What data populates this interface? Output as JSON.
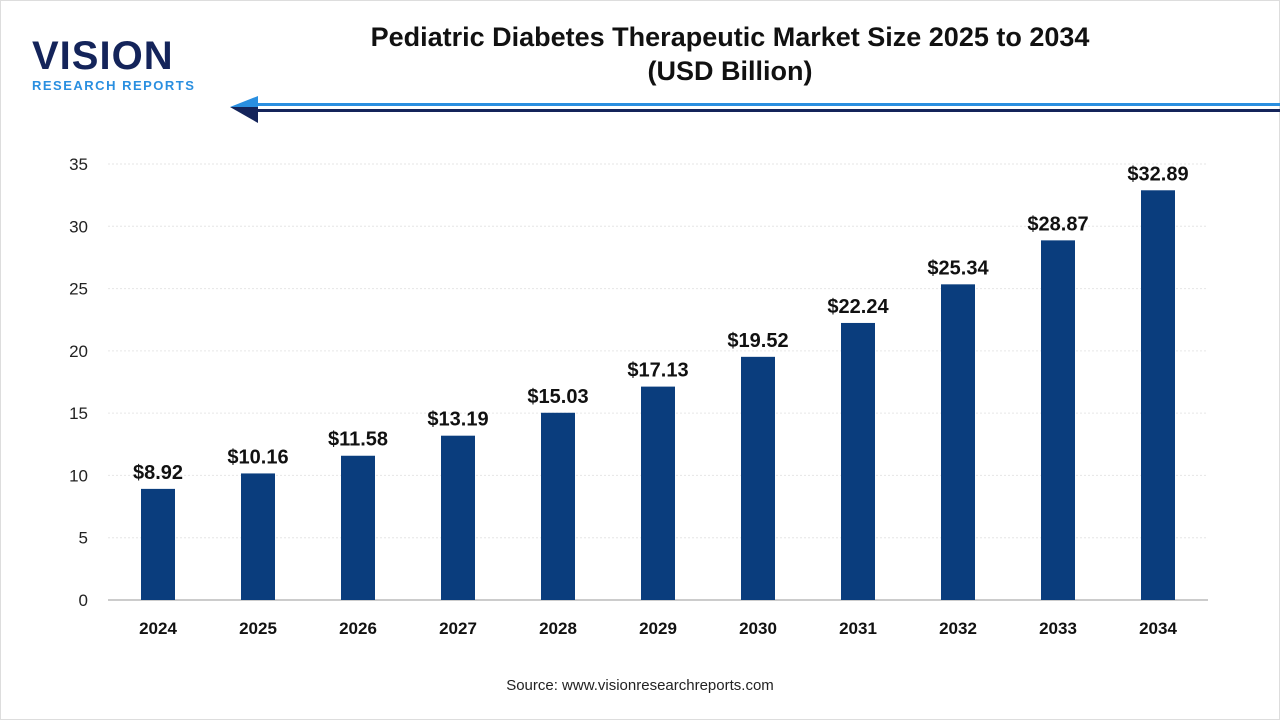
{
  "logo": {
    "name": "VISION",
    "tagline": "RESEARCH REPORTS"
  },
  "header": {
    "title_line1": "Pediatric Diabetes Therapeutic Market Size 2025 to 2034",
    "title_line2": "(USD Billion)"
  },
  "source": "Source: www.visionresearchreports.com",
  "colors": {
    "bar": "#0a3d7d",
    "logo_dark": "#14245a",
    "logo_accent": "#2a8fe0"
  },
  "chart_data": {
    "type": "bar",
    "title": "Pediatric Diabetes Therapeutic Market Size 2025 to 2034 (USD Billion)",
    "categories": [
      "2024",
      "2025",
      "2026",
      "2027",
      "2028",
      "2029",
      "2030",
      "2031",
      "2032",
      "2033",
      "2034"
    ],
    "values": [
      8.92,
      10.16,
      11.58,
      13.19,
      15.03,
      17.13,
      19.52,
      22.24,
      25.34,
      28.87,
      32.89
    ],
    "data_labels": [
      "$8.92",
      "$10.16",
      "$11.58",
      "$13.19",
      "$15.03",
      "$17.13",
      "$19.52",
      "$22.24",
      "$25.34",
      "$28.87",
      "$32.89"
    ],
    "yticks": [
      0,
      5,
      10,
      15,
      20,
      25,
      30,
      35
    ],
    "ylim": [
      0,
      35
    ],
    "grid": true,
    "xlabel": "",
    "ylabel": ""
  }
}
